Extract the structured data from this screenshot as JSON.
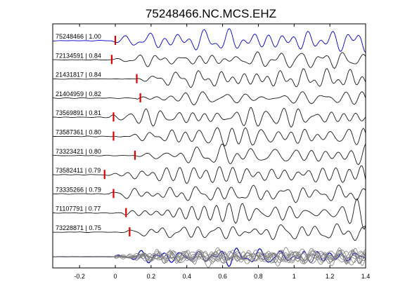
{
  "chart_data": {
    "type": "line",
    "title": "75248466.NC.MCS.EHZ",
    "xlabel": "",
    "ylabel": "",
    "xlim": [
      -0.35,
      1.4
    ],
    "xticks": [
      -0.2,
      0,
      0.2,
      0.4,
      0.6,
      0.8,
      1,
      1.2,
      1.4
    ],
    "xtick_labels": [
      "-0.2",
      "0",
      "0.2",
      "0.4",
      "0.6",
      "0.8",
      "1",
      "1.2",
      "1.4"
    ],
    "grid": false,
    "colors": {
      "reference_trace": "#0000cc",
      "trace": "#1a1a1a",
      "pick_marker": "#e00000",
      "overlay_trace": "#808080",
      "axes": "#000000"
    },
    "series": [
      {
        "name": "75248466 | 1.00",
        "pick_time": 0.0
      },
      {
        "name": "72134591 | 0.84",
        "pick_time": -0.02
      },
      {
        "name": "21431817 | 0.84",
        "pick_time": 0.12
      },
      {
        "name": "21404959 | 0.82",
        "pick_time": 0.14
      },
      {
        "name": "73569891 | 0.81",
        "pick_time": -0.01
      },
      {
        "name": "73587361 | 0.80",
        "pick_time": -0.01
      },
      {
        "name": "73323421 | 0.80",
        "pick_time": 0.11
      },
      {
        "name": "73582411 | 0.79",
        "pick_time": -0.06
      },
      {
        "name": "73335266 | 0.79",
        "pick_time": -0.01
      },
      {
        "name": "71107791 | 0.77",
        "pick_time": 0.06
      },
      {
        "name": "73228871 | 0.75",
        "pick_time": 0.08
      }
    ],
    "stack_overlay": true
  }
}
